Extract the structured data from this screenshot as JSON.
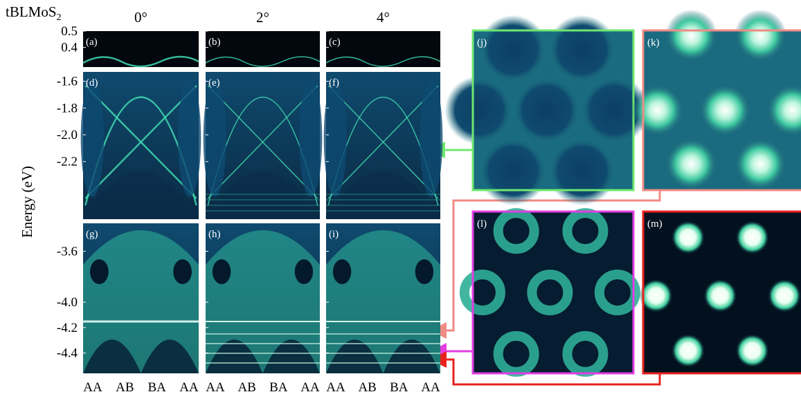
{
  "figure": {
    "system": "tBLMoS",
    "system_subscript": "2",
    "columns": [
      "0°",
      "2°",
      "4°"
    ],
    "y_label": "Energy (eV)",
    "x_ticks": [
      "AA",
      "AB",
      "BA",
      "AA"
    ],
    "rows": [
      {
        "ylim": [
          0.28,
          0.5
        ],
        "yticks": [
          0.5,
          0.4
        ],
        "panels": [
          "(a)",
          "(b)",
          "(c)"
        ]
      },
      {
        "ylim": [
          -2.63,
          -1.53
        ],
        "yticks": [
          -1.6,
          -1.8,
          {
            "value": -2,
            "label": "-2.0"
          },
          -2.2
        ],
        "panels": [
          "(d)",
          "(e)",
          "(f)"
        ]
      },
      {
        "ylim": [
          -4.56,
          -3.38
        ],
        "yticks": [
          -3.6,
          {
            "value": -4,
            "label": "-4.0"
          },
          -4.2,
          -4.4
        ],
        "panels": [
          "(g)",
          "(h)",
          "(i)"
        ]
      }
    ],
    "insets": [
      {
        "label": "(j)",
        "border": "#6fe86f"
      },
      {
        "label": "(k)",
        "border": "#f08a84"
      },
      {
        "label": "(l)",
        "border": "#e23ee2"
      },
      {
        "label": "(m)",
        "border": "#e8211c"
      }
    ]
  }
}
